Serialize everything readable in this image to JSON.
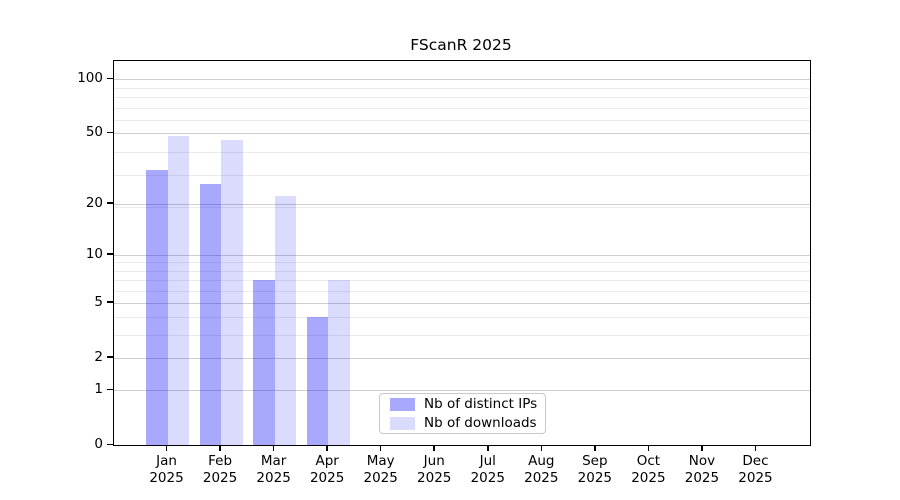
{
  "title": "FScanR 2025",
  "chart_data": {
    "type": "bar",
    "title": "FScanR 2025",
    "xlabel": "",
    "ylabel": "",
    "y_scale": "log1p",
    "ylim": [
      0,
      126
    ],
    "grid": "both",
    "legend_position": "bottom-center",
    "categories": [
      "Jan",
      "Feb",
      "Mar",
      "Apr",
      "May",
      "Jun",
      "Jul",
      "Aug",
      "Sep",
      "Oct",
      "Nov",
      "Dec"
    ],
    "x_tick_year": "2025",
    "y_major_ticks": [
      0,
      1,
      2,
      5,
      10,
      20,
      50,
      100
    ],
    "y_minor_gridline_values": [
      3,
      4,
      6,
      7,
      8,
      9,
      19,
      29,
      39,
      59,
      69,
      79,
      89
    ],
    "series": [
      {
        "name": "Nb of distinct IPs",
        "fill": "rgba(0,0,250,0.34)",
        "fill_hex_on_white": "#a9a9fd",
        "values": [
          31,
          26,
          7,
          4,
          0,
          0,
          0,
          0,
          0,
          0,
          0,
          0
        ]
      },
      {
        "name": "Nb of downloads",
        "fill": "rgba(0,0,250,0.14)",
        "fill_hex_on_white": "#dbdbfe",
        "values": [
          48,
          46,
          22,
          7,
          0,
          0,
          0,
          0,
          0,
          0,
          0,
          0
        ]
      }
    ],
    "colors": {
      "minor_gridline": "#ececec",
      "major_gridline": "#cfcfcf",
      "axis": "#000000",
      "background": "#ffffff"
    }
  },
  "legend": {
    "items": [
      {
        "label": "Nb of distinct IPs"
      },
      {
        "label": "Nb of downloads"
      }
    ]
  }
}
